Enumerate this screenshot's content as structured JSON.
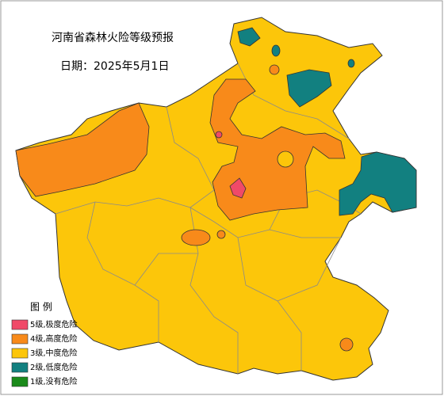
{
  "title": "河南省森林火险等级预报",
  "date": "日期：2025年5月1日",
  "legend": {
    "title": "图 例",
    "items": [
      {
        "label": "5级,极度危险",
        "color": "#f04a68"
      },
      {
        "label": "4级,高度危险",
        "color": "#f88a1a"
      },
      {
        "label": "3级,中度危险",
        "color": "#fcc60a"
      },
      {
        "label": "2级,低度危险",
        "color": "#128080"
      },
      {
        "label": "1级,没有危险",
        "color": "#1a8a1a"
      }
    ]
  }
}
